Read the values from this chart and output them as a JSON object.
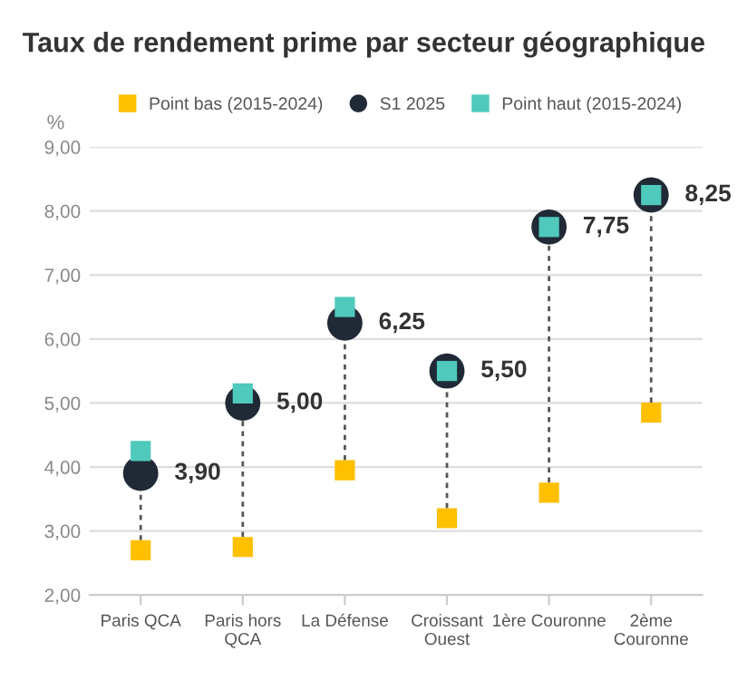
{
  "chart_data": {
    "type": "scatter",
    "title": "Taux de rendement prime par secteur géographique",
    "ylabel": "%",
    "categories": [
      "Paris QCA",
      "Paris hors\nQCA",
      "La Défense",
      "Croissant\nOuest",
      "1ère Couronne",
      "2ème\nCouronne"
    ],
    "series": [
      {
        "name": "Point bas (2015-2024)",
        "color": "#ffc000",
        "marker": "square",
        "values": [
          2.7,
          2.75,
          3.95,
          3.2,
          3.6,
          4.85
        ]
      },
      {
        "name": "S1 2025",
        "color": "#1f2a36",
        "marker": "circle",
        "values": [
          3.9,
          5.0,
          6.25,
          5.5,
          7.75,
          8.25
        ],
        "value_labels": [
          "3,90",
          "5,00",
          "6,25",
          "5,50",
          "7,75",
          "8,25"
        ]
      },
      {
        "name": "Point haut (2015-2024)",
        "color": "#4fc9bc",
        "marker": "square",
        "values": [
          4.25,
          5.15,
          6.5,
          5.5,
          7.75,
          8.25
        ]
      }
    ],
    "ylim": [
      2,
      9
    ],
    "yticks": [
      {
        "value": 2,
        "label": "2,00"
      },
      {
        "value": 3,
        "label": "3,00"
      },
      {
        "value": 4,
        "label": "4,00"
      },
      {
        "value": 5,
        "label": "5,00"
      },
      {
        "value": 6,
        "label": "6,00"
      },
      {
        "value": 7,
        "label": "7,00"
      },
      {
        "value": 8,
        "label": "8,00"
      },
      {
        "value": 9,
        "label": "9,00"
      }
    ],
    "grid": "y",
    "legend": "top"
  }
}
